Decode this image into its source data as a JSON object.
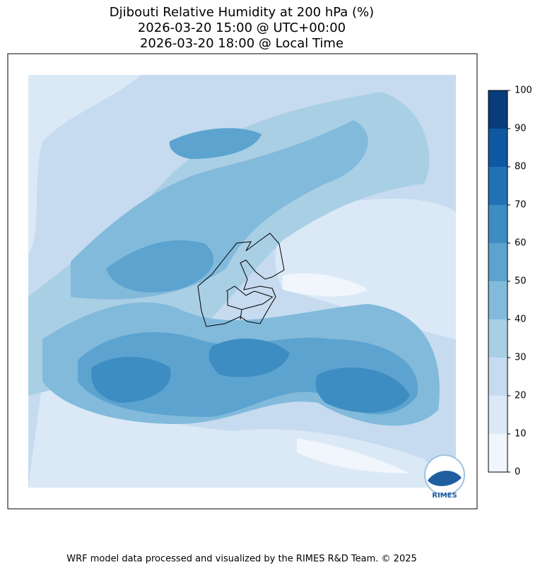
{
  "title": [
    "Djibouti Relative Humidity at 200 hPa (%)",
    "2026-03-20 15:00 @ UTC+00:00",
    "2026-03-20 18:00 @ Local Time"
  ],
  "colorbar": {
    "ticks": [
      0,
      10,
      20,
      30,
      40,
      50,
      60,
      70,
      80,
      90,
      100
    ],
    "colors": [
      "#f0f6fc",
      "#dbe9f6",
      "#c6dbef",
      "#a9cfe5",
      "#82badb",
      "#5ca3d0",
      "#3d8dc3",
      "#2171b5",
      "#0d58a1",
      "#083c7d"
    ]
  },
  "logo_text": "RIMES",
  "footer": "WRF model data processed and visualized by the RIMES R&D Team. © 2025"
}
